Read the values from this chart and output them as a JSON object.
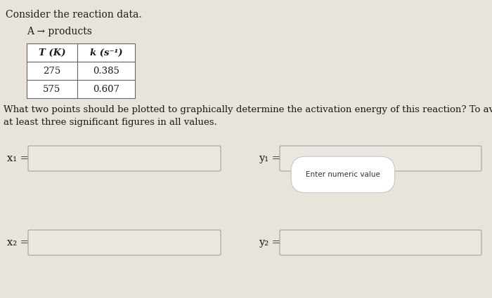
{
  "title": "Consider the reaction data.",
  "reaction": "A → products",
  "table_header_col1": "T (K)",
  "table_header_col2": "k (s⁻¹)",
  "table_row1": [
    "275",
    "0.385"
  ],
  "table_row2": [
    "575",
    "0.607"
  ],
  "question_line1": "What two points should be plotted to graphically determine the activation energy of this reaction? To avoid rounding errors, use",
  "question_line2": "at least three significant figures in all values.",
  "x1_label": "x₁ =",
  "x2_label": "x₂ =",
  "y1_label": "y₁ =",
  "y2_label": "y₂ =",
  "tooltip": "Enter numeric value",
  "bg_color": "#e8e4dc",
  "box_fill": "#eae7e0",
  "box_edge": "#aaaaaa",
  "table_edge": "#666666",
  "text_color": "#1a1a1a"
}
